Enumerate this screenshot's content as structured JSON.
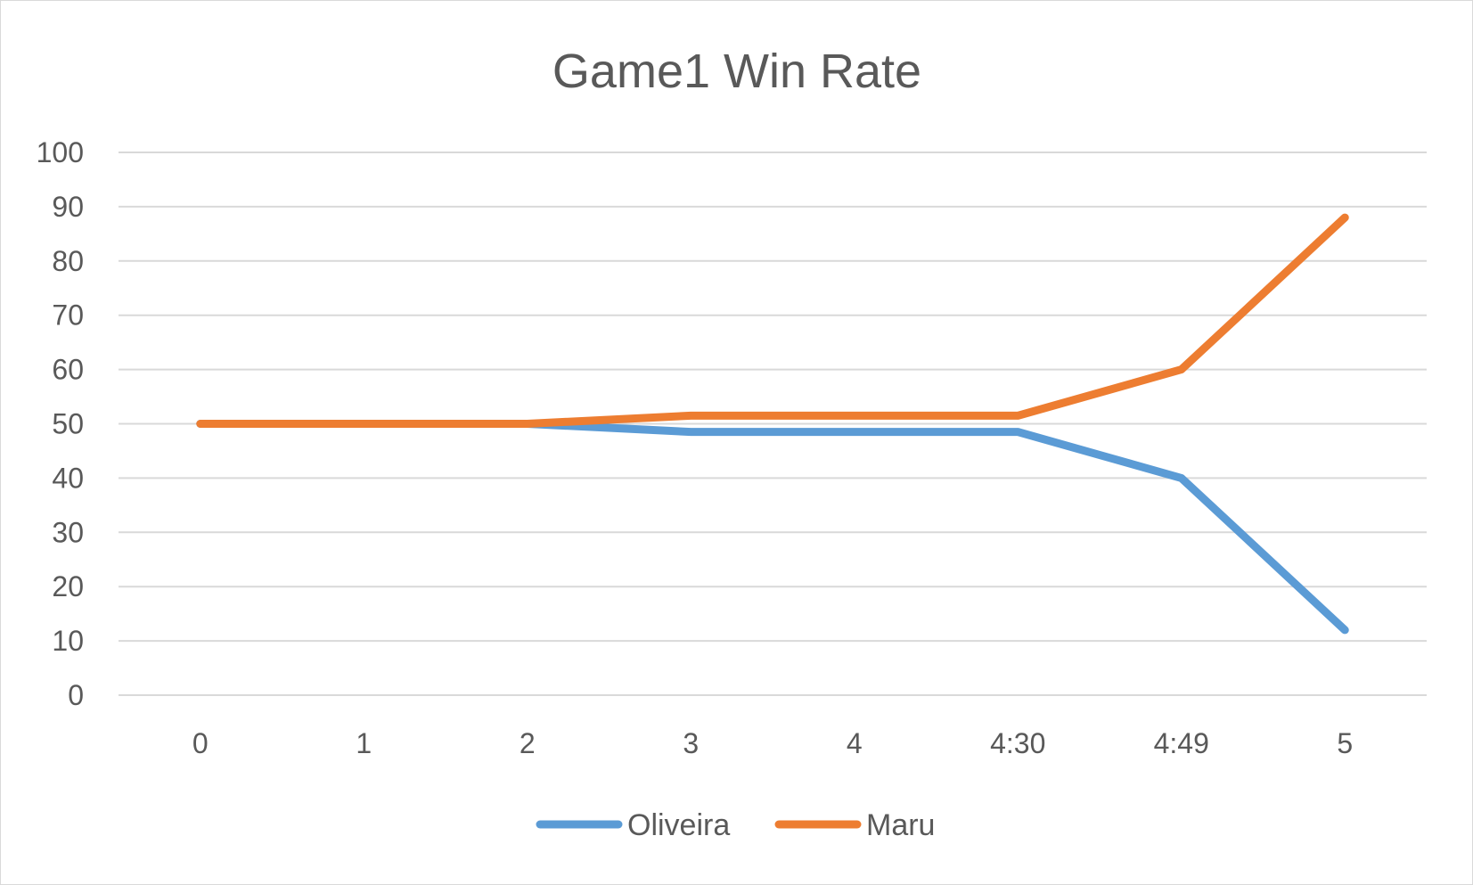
{
  "chart_data": {
    "type": "line",
    "title": "Game1 Win Rate",
    "xlabel": "",
    "ylabel": "",
    "categories": [
      "0",
      "1",
      "2",
      "3",
      "4",
      "4:30",
      "4:49",
      "5"
    ],
    "ylim": [
      0,
      100
    ],
    "yticks": [
      0,
      10,
      20,
      30,
      40,
      50,
      60,
      70,
      80,
      90,
      100
    ],
    "grid": true,
    "legend_position": "bottom",
    "series": [
      {
        "name": "Oliveira",
        "color": "#5b9bd5",
        "values": [
          50,
          50,
          50,
          48.5,
          48.5,
          48.5,
          40,
          12
        ]
      },
      {
        "name": "Maru",
        "color": "#ed7d31",
        "values": [
          50,
          50,
          50,
          51.5,
          51.5,
          51.5,
          60,
          88
        ]
      }
    ]
  }
}
